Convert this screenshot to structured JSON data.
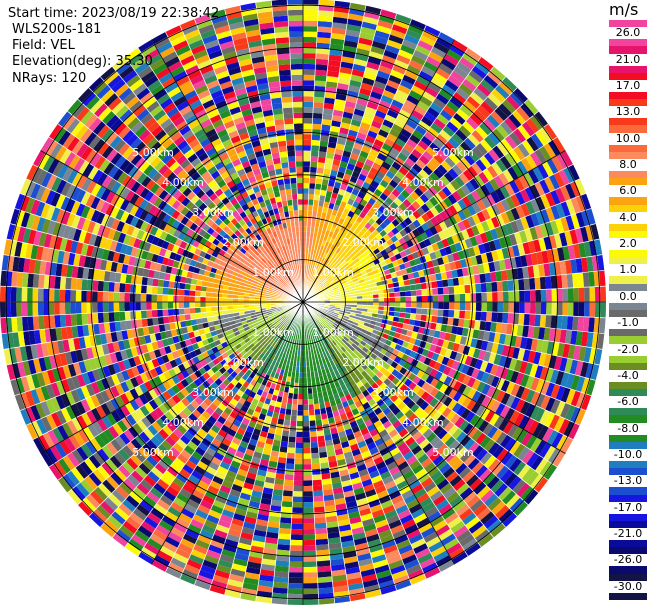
{
  "header": {
    "start_time": "Start time: 2023/08/19 22:38:42",
    "station": "WLS200s-181",
    "field": "Field: VEL",
    "elevation": "Elevation(deg): 35.30",
    "nrays": "NRays: 120"
  },
  "colorbar": {
    "unit": "m/s",
    "tick_labels": [
      "26.0",
      "21.0",
      "17.0",
      "13.0",
      "10.0",
      "8.0",
      "6.0",
      "4.0",
      "2.0",
      "1.0",
      "0.0",
      "-1.0",
      "-2.0",
      "-4.0",
      "-6.0",
      "-8.0",
      "-10.0",
      "-13.0",
      "-17.0",
      "-21.0",
      "-26.0",
      "-30.0"
    ],
    "colors": [
      "#f0449e",
      "#e8136a",
      "#f40d22",
      "#f93a1a",
      "#fb6a3a",
      "#fb8a5e",
      "#fca311",
      "#fcd108",
      "#fdfa05",
      "#f0f04a",
      "#7a8792",
      "#6a6a6a",
      "#9acd32",
      "#6b8e23",
      "#2e8b57",
      "#228b22",
      "#1e7ebf",
      "#1c4fd0",
      "#1616e0",
      "#0b0b9a",
      "#0a0a6e",
      "#131346"
    ]
  },
  "chart_data": {
    "type": "heatmap",
    "subtype": "polar PPI (plan position indicator)",
    "field": "VEL",
    "units": "m/s",
    "rays": 120,
    "elevation_deg": 35.3,
    "range_ring_labels": [
      "1.00km",
      "2.00km",
      "3.00km",
      "4.00km",
      "5.00km"
    ],
    "value_range": [
      -30,
      26
    ],
    "sectors": [
      {
        "region": "north, 0-2 km",
        "dominant_values": [
          6,
          8
        ]
      },
      {
        "region": "north-east, 0-2 km",
        "dominant_values": [
          2,
          4
        ]
      },
      {
        "region": "east, 0-2 km",
        "dominant_values": [
          0,
          -1
        ]
      },
      {
        "region": "south-east, 0-2 km",
        "dominant_values": [
          -2,
          -4
        ]
      },
      {
        "region": "south, 0-2 km",
        "dominant_values": [
          -6,
          -8
        ]
      },
      {
        "region": "south-west, 0-2 km",
        "dominant_values": [
          -4,
          -6
        ]
      },
      {
        "region": "west, 0-2 km",
        "dominant_values": [
          4,
          6
        ]
      },
      {
        "region": "beyond 2 km",
        "dominant_values": "noise (all values)"
      }
    ]
  }
}
